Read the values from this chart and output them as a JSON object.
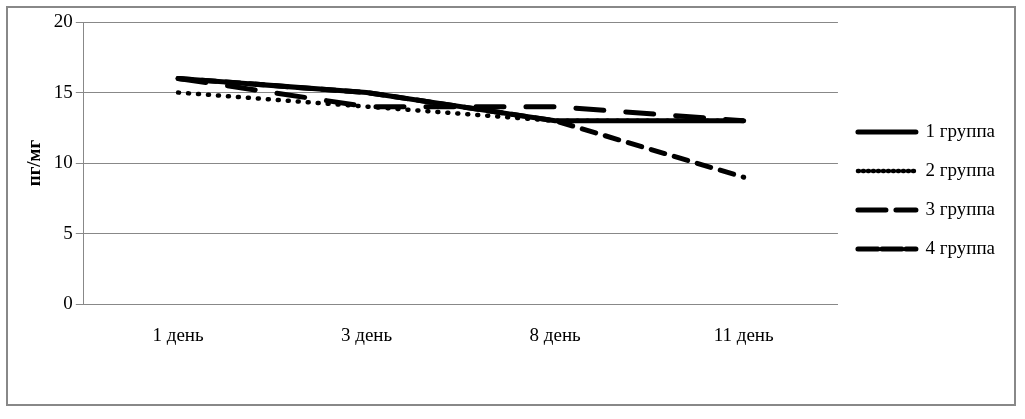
{
  "chart_data": {
    "type": "line",
    "ylabel": "пг/мг",
    "categories": [
      "1 день",
      "3 день",
      "8 день",
      "11 день"
    ],
    "series": [
      {
        "name": "1 группа",
        "color": "#000000",
        "values": [
          16,
          15,
          13,
          13
        ],
        "line_style": "solid"
      },
      {
        "name": "2 группа",
        "color": "#000000",
        "values": [
          15,
          14,
          13,
          13
        ],
        "line_style": "dotted"
      },
      {
        "name": "3 группа",
        "color": "#000000",
        "values": [
          16,
          14,
          14,
          13
        ],
        "line_style": "long_dashed"
      },
      {
        "name": "4 группа",
        "color": "#000000",
        "values": [
          16,
          15,
          13,
          9
        ],
        "line_style": "dashed"
      }
    ],
    "ylim": [
      0,
      20
    ],
    "yticks": [
      0,
      5,
      10,
      15,
      20
    ],
    "grid": "y",
    "legend": "right",
    "marker": "none"
  }
}
